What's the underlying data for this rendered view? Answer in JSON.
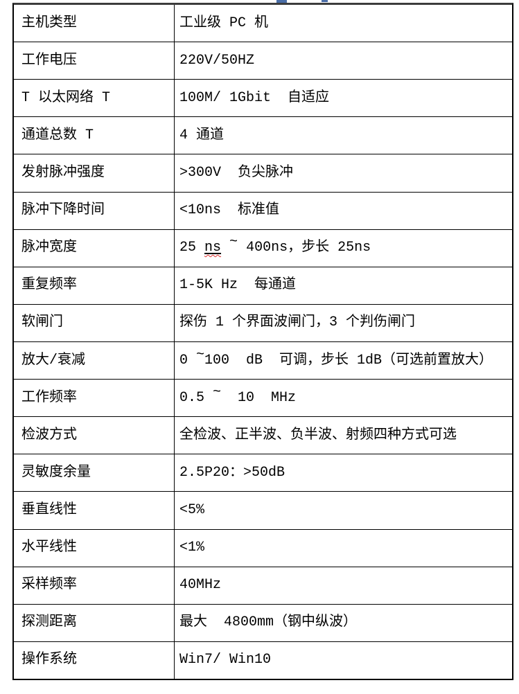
{
  "page": {
    "background": "#ffffff"
  },
  "artifacts": {
    "cutoff_text_fragment_color": "#4a6da7"
  },
  "table": {
    "border_color": "#000000",
    "top_border_color": "#3c3c3c",
    "text_color": "#000000",
    "spellcheck_squiggle_color": "#e03131",
    "columns": [
      "parameter",
      "value"
    ],
    "rows": [
      {
        "label": "主机类型",
        "value": "工业级 PC 机"
      },
      {
        "label": "工作电压",
        "value": "220V/50HZ"
      },
      {
        "label": "T 以太网络 T",
        "value": "100M/ 1Gbit  自适应"
      },
      {
        "label": "通道总数 T",
        "value": "4 通道"
      },
      {
        "label": "发射脉冲强度",
        "value": ">300V  负尖脉冲"
      },
      {
        "label": "脉冲下降时间",
        "value": "<10ns  标准值"
      },
      {
        "label": "脉冲宽度",
        "value": "25 ns ~ 400ns，步长 25ns",
        "runs": [
          {
            "t": "25 "
          },
          {
            "t": "ns",
            "u": true,
            "sq": true
          },
          {
            "t": " "
          },
          {
            "t": "~",
            "sup": true
          },
          {
            "t": " 400ns，步长 25ns"
          }
        ]
      },
      {
        "label": "重复频率",
        "value": "1-5K Hz  每通道"
      },
      {
        "label": "软闸门",
        "value": "探伤 1 个界面波闸门，3 个判伤闸门"
      },
      {
        "label": "放大/衰减",
        "value": "0 ~100 dB 可调，步长 1dB（可选前置放大）",
        "runs": [
          {
            "t": "0 "
          },
          {
            "t": "~",
            "sup": true
          },
          {
            "t": "100  dB  可调，步长 1dB（可选前置放大）"
          }
        ]
      },
      {
        "label": "工作频率",
        "value": "0.5 ~ 10 MHz",
        "runs": [
          {
            "t": "0.5 "
          },
          {
            "t": "~",
            "sup": true
          },
          {
            "t": "  10  MHz"
          }
        ]
      },
      {
        "label": "检波方式",
        "value": "全检波、正半波、负半波、射频四种方式可选"
      },
      {
        "label": "灵敏度余量",
        "value": "2.5P20：>50dB"
      },
      {
        "label": "垂直线性",
        "value": "<5%"
      },
      {
        "label": "水平线性",
        "value": "<1%"
      },
      {
        "label": "采样频率",
        "value": "40MHz"
      },
      {
        "label": "探测距离",
        "value": "最大  4800mm（钢中纵波）"
      },
      {
        "label": "操作系统",
        "value": "Win7/ Win10"
      }
    ]
  }
}
